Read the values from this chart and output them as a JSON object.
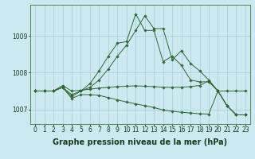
{
  "background_color": "#cce8f0",
  "grid_color": "#aaccda",
  "line_color": "#2d6a2d",
  "xlabel": "Graphe pression niveau de la mer (hPa)",
  "xlabel_fontsize": 7,
  "tick_fontsize": 5.5,
  "xlim": [
    -0.5,
    23.5
  ],
  "ylim": [
    1006.6,
    1009.85
  ],
  "yticks": [
    1007,
    1008,
    1009
  ],
  "xticks": [
    0,
    1,
    2,
    3,
    4,
    5,
    6,
    7,
    8,
    9,
    10,
    11,
    12,
    13,
    14,
    15,
    16,
    17,
    18,
    19,
    20,
    21,
    22,
    23
  ],
  "series": [
    {
      "x": [
        0,
        1,
        2,
        3,
        4,
        5,
        6,
        7,
        8,
        9,
        10,
        11,
        12,
        13,
        14,
        15,
        16,
        17,
        18,
        19,
        20,
        21,
        22,
        23
      ],
      "y": [
        1007.5,
        1007.5,
        1007.5,
        1007.6,
        1007.35,
        1007.5,
        1007.6,
        1007.8,
        1008.1,
        1008.45,
        1008.75,
        1009.15,
        1009.55,
        1009.2,
        1009.2,
        1008.35,
        1008.6,
        1008.25,
        1008.05,
        1007.8,
        1007.5,
        1007.1,
        1006.85,
        1006.85
      ]
    },
    {
      "x": [
        0,
        1,
        2,
        3,
        4,
        5,
        6,
        7,
        8,
        9,
        10,
        11,
        12,
        13,
        14,
        15,
        16,
        17,
        18,
        19,
        20,
        21,
        22,
        23
      ],
      "y": [
        1007.5,
        1007.5,
        1007.5,
        1007.6,
        1007.4,
        1007.5,
        1007.7,
        1008.05,
        1008.45,
        1008.8,
        1008.85,
        1009.6,
        1009.15,
        1009.15,
        1008.3,
        1008.45,
        1008.2,
        1007.8,
        1007.75,
        1007.75,
        1007.5,
        1007.1,
        1006.85,
        1006.85
      ]
    },
    {
      "x": [
        0,
        1,
        2,
        3,
        4,
        5,
        6,
        7,
        8,
        9,
        10,
        11,
        12,
        13,
        14,
        15,
        16,
        17,
        18,
        19,
        20,
        21,
        22,
        23
      ],
      "y": [
        1007.5,
        1007.5,
        1007.5,
        1007.65,
        1007.5,
        1007.52,
        1007.55,
        1007.58,
        1007.6,
        1007.62,
        1007.63,
        1007.64,
        1007.63,
        1007.62,
        1007.6,
        1007.6,
        1007.6,
        1007.62,
        1007.65,
        1007.78,
        1007.5,
        1007.5,
        1007.5,
        1007.5
      ]
    },
    {
      "x": [
        0,
        1,
        2,
        3,
        4,
        5,
        6,
        7,
        8,
        9,
        10,
        11,
        12,
        13,
        14,
        15,
        16,
        17,
        18,
        19,
        20,
        21,
        22,
        23
      ],
      "y": [
        1007.5,
        1007.5,
        1007.5,
        1007.6,
        1007.3,
        1007.4,
        1007.4,
        1007.38,
        1007.32,
        1007.26,
        1007.2,
        1007.15,
        1007.1,
        1007.05,
        1006.98,
        1006.95,
        1006.92,
        1006.9,
        1006.88,
        1006.87,
        1007.5,
        1007.1,
        1006.85,
        1006.85
      ]
    }
  ]
}
